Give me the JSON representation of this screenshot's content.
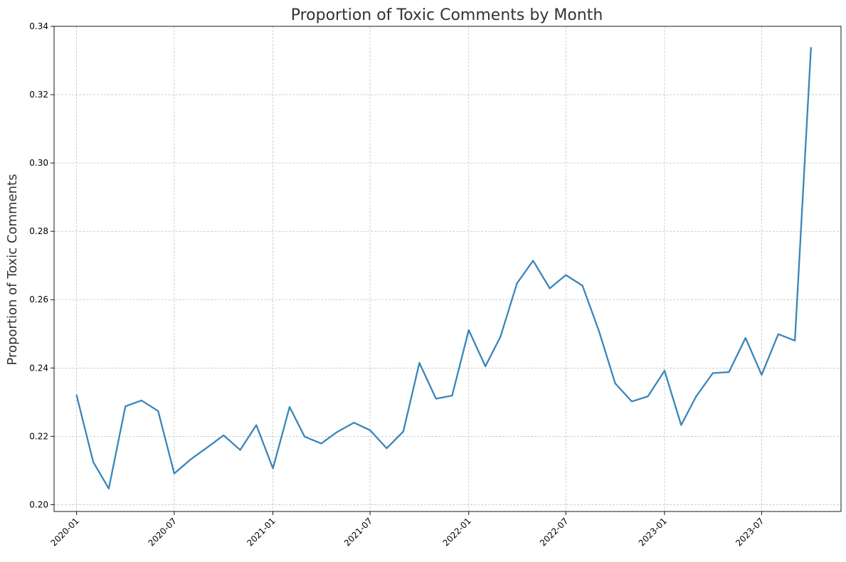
{
  "chart_data": {
    "type": "line",
    "title": "Proportion of Toxic Comments by Month",
    "xlabel": "",
    "ylabel": "Proportion of Toxic Comments",
    "x": [
      "2020-01",
      "2020-02",
      "2020-03",
      "2020-04",
      "2020-05",
      "2020-06",
      "2020-07",
      "2020-08",
      "2020-09",
      "2020-10",
      "2020-11",
      "2020-12",
      "2021-01",
      "2021-02",
      "2021-03",
      "2021-04",
      "2021-05",
      "2021-06",
      "2021-07",
      "2021-08",
      "2021-09",
      "2021-10",
      "2021-11",
      "2021-12",
      "2022-01",
      "2022-02",
      "2022-03",
      "2022-04",
      "2022-05",
      "2022-06",
      "2022-07",
      "2022-08",
      "2022-09",
      "2022-10",
      "2022-11",
      "2022-12",
      "2023-01",
      "2023-02",
      "2023-03",
      "2023-04",
      "2023-05",
      "2023-06",
      "2023-07",
      "2023-08",
      "2023-09",
      "2023-10"
    ],
    "series": [
      {
        "values": [
          0.232,
          0.2125,
          0.2047,
          0.2288,
          0.2305,
          0.2274,
          0.2091,
          0.2133,
          0.2168,
          0.2203,
          0.216,
          0.2233,
          0.2106,
          0.2286,
          0.2199,
          0.2179,
          0.2213,
          0.224,
          0.2218,
          0.2165,
          0.2214,
          0.2415,
          0.231,
          0.2319,
          0.2511,
          0.2405,
          0.2491,
          0.2648,
          0.2714,
          0.2633,
          0.2672,
          0.2641,
          0.2507,
          0.2355,
          0.2302,
          0.2317,
          0.2392,
          0.2233,
          0.2317,
          0.2385,
          0.2388,
          0.2488,
          0.238,
          0.2499,
          0.248,
          0.3337
        ],
        "color": "#3a85ba"
      }
    ],
    "xticks": [
      "2020-01",
      "2020-07",
      "2021-01",
      "2021-07",
      "2022-01",
      "2022-07",
      "2023-01",
      "2023-07"
    ],
    "yticks": [
      "0.20",
      "0.22",
      "0.24",
      "0.26",
      "0.28",
      "0.30",
      "0.32",
      "0.34"
    ],
    "ylim": [
      0.198,
      0.34
    ],
    "xlim": [
      "2019-11-20",
      "2023-11-26"
    ],
    "grid": true
  }
}
